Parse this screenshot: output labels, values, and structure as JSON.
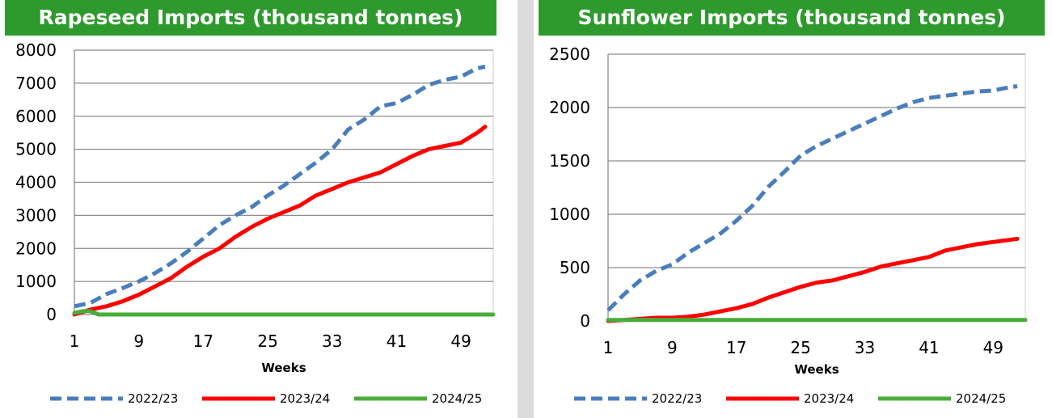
{
  "chart_data": [
    {
      "type": "line",
      "title": "Rapeseed Imports (thousand tonnes)",
      "xlabel": "Weeks",
      "ylabel": "",
      "xticks": [
        1,
        9,
        17,
        25,
        33,
        41,
        49
      ],
      "xlim": [
        1,
        53
      ],
      "ylim": [
        0,
        8000
      ],
      "yticks": [
        0,
        1000,
        2000,
        3000,
        4000,
        5000,
        6000,
        7000,
        8000
      ],
      "grid": true,
      "legend": "bottom",
      "series": [
        {
          "name": "2022/23",
          "color": "#4a7ebb",
          "style": "dashed",
          "x": [
            1,
            3,
            5,
            7,
            9,
            11,
            13,
            15,
            17,
            19,
            21,
            23,
            25,
            27,
            29,
            31,
            33,
            35,
            37,
            39,
            41,
            43,
            45,
            47,
            49,
            51,
            52
          ],
          "y": [
            250,
            350,
            620,
            800,
            1000,
            1250,
            1550,
            1900,
            2300,
            2700,
            3000,
            3250,
            3600,
            3900,
            4250,
            4600,
            5000,
            5600,
            5900,
            6300,
            6400,
            6650,
            6950,
            7100,
            7200,
            7450,
            7500
          ]
        },
        {
          "name": "2023/24",
          "color": "#ff0000",
          "style": "solid",
          "x": [
            1,
            3,
            5,
            7,
            9,
            11,
            13,
            15,
            17,
            19,
            21,
            23,
            25,
            27,
            29,
            31,
            33,
            35,
            37,
            39,
            41,
            43,
            45,
            47,
            49,
            51,
            52
          ],
          "y": [
            0,
            150,
            250,
            400,
            600,
            850,
            1100,
            1450,
            1750,
            2000,
            2350,
            2650,
            2900,
            3100,
            3300,
            3600,
            3800,
            4000,
            4150,
            4300,
            4550,
            4800,
            5000,
            5100,
            5200,
            5500,
            5680
          ]
        },
        {
          "name": "2024/25",
          "color": "#4aac3a",
          "style": "solid",
          "x": [
            1,
            2,
            3,
            4,
            53
          ],
          "y": [
            50,
            100,
            100,
            0,
            0
          ]
        }
      ]
    },
    {
      "type": "line",
      "title": "Sunflower Imports (thousand tonnes)",
      "xlabel": "Weeks",
      "ylabel": "",
      "xticks": [
        1,
        9,
        17,
        25,
        33,
        41,
        49
      ],
      "xlim": [
        1,
        53
      ],
      "ylim": [
        0,
        2500
      ],
      "yticks": [
        0,
        500,
        1000,
        1500,
        2000,
        2500
      ],
      "grid": true,
      "legend": "bottom",
      "series": [
        {
          "name": "2022/23",
          "color": "#4a7ebb",
          "style": "dashed",
          "x": [
            1,
            3,
            5,
            7,
            9,
            11,
            13,
            15,
            17,
            19,
            21,
            23,
            25,
            27,
            29,
            31,
            33,
            35,
            37,
            39,
            41,
            43,
            45,
            47,
            49,
            51,
            52
          ],
          "y": [
            100,
            250,
            380,
            470,
            530,
            640,
            730,
            820,
            940,
            1080,
            1260,
            1400,
            1550,
            1640,
            1710,
            1780,
            1850,
            1920,
            1990,
            2050,
            2090,
            2110,
            2130,
            2150,
            2160,
            2190,
            2200
          ]
        },
        {
          "name": "2023/24",
          "color": "#ff0000",
          "style": "solid",
          "x": [
            1,
            3,
            5,
            7,
            9,
            11,
            13,
            15,
            17,
            19,
            21,
            23,
            25,
            27,
            29,
            31,
            33,
            35,
            37,
            39,
            41,
            43,
            45,
            47,
            49,
            51,
            52
          ],
          "y": [
            0,
            10,
            20,
            30,
            30,
            40,
            60,
            90,
            120,
            160,
            220,
            270,
            320,
            360,
            380,
            420,
            460,
            510,
            540,
            570,
            600,
            660,
            690,
            720,
            740,
            760,
            770
          ]
        },
        {
          "name": "2024/25",
          "color": "#4aac3a",
          "style": "solid",
          "x": [
            1,
            53
          ],
          "y": [
            10,
            10
          ]
        }
      ]
    }
  ]
}
